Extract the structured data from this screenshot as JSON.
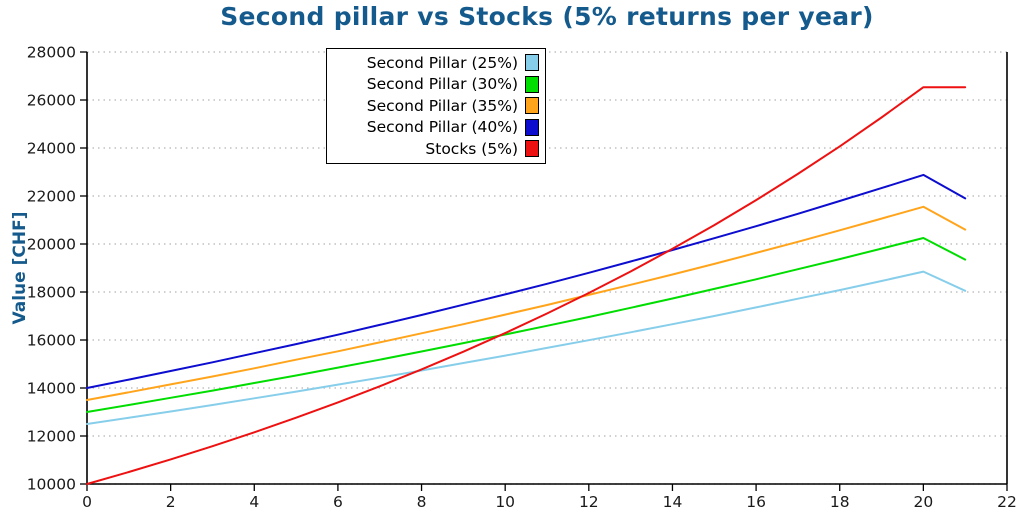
{
  "page": {
    "background": "#ffffff"
  },
  "chart_data": {
    "type": "line",
    "title": "Second pillar vs Stocks (5% returns per year)",
    "title_color": "#155a8c",
    "ylabel": "Value [CHF]",
    "xlabel": "",
    "xlim": [
      0,
      22
    ],
    "ylim": [
      10000,
      28000
    ],
    "xticks": [
      0,
      2,
      4,
      6,
      8,
      10,
      12,
      14,
      16,
      18,
      20,
      22
    ],
    "yticks": [
      10000,
      12000,
      14000,
      16000,
      18000,
      20000,
      22000,
      24000,
      26000,
      28000
    ],
    "grid": "horizontal dotted",
    "grid_color": "#b5b5b5",
    "axis_color": "#000000",
    "tick_label_color": "#1a1a1a",
    "legend_position": "upper center-left",
    "x_years": [
      0,
      1,
      2,
      3,
      4,
      5,
      6,
      7,
      8,
      9,
      10,
      11,
      12,
      13,
      14,
      15,
      16,
      17,
      18,
      19,
      20,
      21
    ],
    "series": [
      {
        "name": "Second Pillar (25%)",
        "color": "#87ceeb",
        "values": [
          12500,
          12760,
          13020,
          13290,
          13570,
          13850,
          14140,
          14430,
          14730,
          15040,
          15350,
          15670,
          15990,
          16320,
          16660,
          17000,
          17360,
          17720,
          18080,
          18460,
          18850,
          18050
        ]
      },
      {
        "name": "Second Pillar (30%)",
        "color": "#00dd00",
        "values": [
          13000,
          13290,
          13590,
          13890,
          14210,
          14520,
          14850,
          15180,
          15520,
          15870,
          16230,
          16590,
          16960,
          17340,
          17730,
          18130,
          18530,
          18950,
          19370,
          19810,
          20250,
          19350
        ]
      },
      {
        "name": "Second Pillar (35%)",
        "color": "#ffa41b",
        "values": [
          13500,
          13820,
          14150,
          14480,
          14820,
          15180,
          15530,
          15900,
          16280,
          16660,
          17060,
          17460,
          17880,
          18300,
          18730,
          19170,
          19630,
          20090,
          20570,
          21060,
          21550,
          20600
        ]
      },
      {
        "name": "Second Pillar (40%)",
        "color": "#0d0dd0",
        "values": [
          14000,
          14350,
          14710,
          15070,
          15450,
          15830,
          16220,
          16630,
          17040,
          17470,
          17900,
          18340,
          18800,
          19270,
          19750,
          20240,
          20740,
          21260,
          21790,
          22330,
          22880,
          21900
        ]
      },
      {
        "name": "Stocks (5%)",
        "color": "#ee1111",
        "values": [
          10000,
          10500,
          11025,
          11576,
          12155,
          12763,
          13401,
          14071,
          14775,
          15513,
          16289,
          17103,
          17959,
          18856,
          19799,
          20789,
          21829,
          22920,
          24066,
          25270,
          26533,
          26533
        ]
      }
    ]
  }
}
